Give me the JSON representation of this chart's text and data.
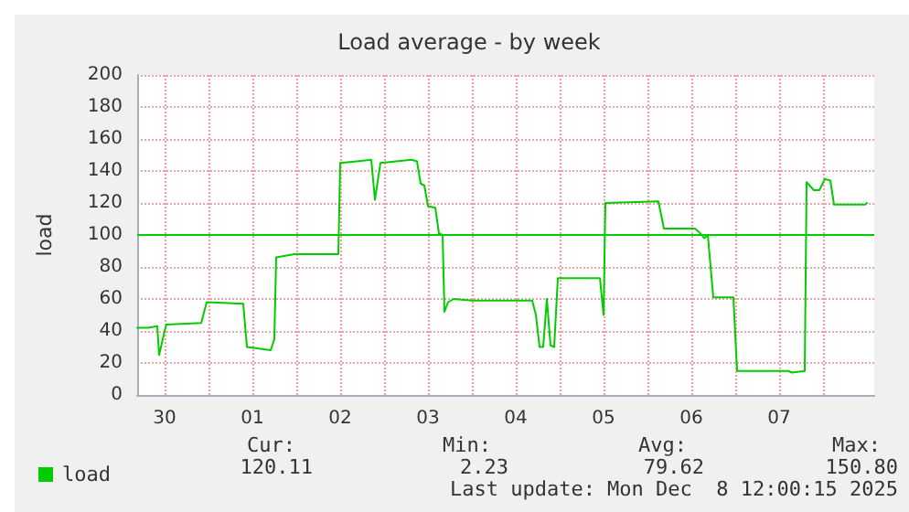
{
  "chart_data": {
    "type": "line",
    "title": "Load average - by week",
    "ylabel": "load",
    "x": [
      "2025-11-30T04:30",
      "2025-11-30T07:30",
      "2025-11-30T10:00",
      "2025-11-30T10:30",
      "2025-11-30T12:00",
      "2025-11-30T12:30",
      "2025-11-30T22:00",
      "2025-11-30T23:30",
      "2025-12-01T09:30",
      "2025-12-01T10:30",
      "2025-12-01T17:00",
      "2025-12-01T18:00",
      "2025-12-01T18:30",
      "2025-12-01T23:30",
      "2025-12-02T11:30",
      "2025-12-02T12:00",
      "2025-12-02T16:30",
      "2025-12-02T20:30",
      "2025-12-02T21:30",
      "2025-12-02T23:00",
      "2025-12-03T07:30",
      "2025-12-03T09:00",
      "2025-12-03T10:00",
      "2025-12-03T11:00",
      "2025-12-03T12:00",
      "2025-12-03T14:00",
      "2025-12-03T15:00",
      "2025-12-03T16:00",
      "2025-12-03T16:30",
      "2025-12-03T17:30",
      "2025-12-03T19:00",
      "2025-12-04T00:00",
      "2025-12-04T16:30",
      "2025-12-04T17:30",
      "2025-12-04T18:30",
      "2025-12-04T19:30",
      "2025-12-04T20:30",
      "2025-12-04T21:30",
      "2025-12-04T22:30",
      "2025-12-04T23:30",
      "2025-12-05T11:00",
      "2025-12-05T12:00",
      "2025-12-05T12:30",
      "2025-12-06T03:00",
      "2025-12-06T04:30",
      "2025-12-06T13:00",
      "2025-12-06T14:30",
      "2025-12-06T15:30",
      "2025-12-06T16:30",
      "2025-12-06T18:00",
      "2025-12-06T23:30",
      "2025-12-07T00:30",
      "2025-12-07T14:30",
      "2025-12-07T15:30",
      "2025-12-07T19:00",
      "2025-12-07T19:30",
      "2025-12-07T21:30",
      "2025-12-07T23:00",
      "2025-12-08T00:30",
      "2025-12-08T02:00",
      "2025-12-08T03:00",
      "2025-12-08T11:30",
      "2025-12-08T12:00"
    ],
    "series": [
      {
        "name": "load",
        "color": "#00cc00",
        "values": [
          42,
          42,
          43,
          25,
          40,
          44,
          45,
          58,
          57,
          30,
          28,
          35,
          86,
          88,
          88,
          145,
          146,
          147,
          122,
          145,
          147,
          146,
          132,
          131,
          118,
          117,
          101,
          100,
          52,
          58,
          60,
          59,
          59,
          50,
          30,
          30,
          60,
          31,
          30,
          73,
          73,
          50,
          120,
          121,
          104,
          104,
          101,
          98,
          100,
          61,
          61,
          15,
          15,
          14,
          15,
          133,
          128,
          128,
          135,
          134,
          119,
          119,
          120
        ]
      }
    ],
    "xlim": [
      "2025-11-30T04:30",
      "2025-12-08T14:00"
    ],
    "xticks": [
      {
        "value": "2025-11-30T12:00",
        "label": "30"
      },
      {
        "value": "2025-12-01T00:00",
        "label": null
      },
      {
        "value": "2025-12-01T12:00",
        "label": "01"
      },
      {
        "value": "2025-12-02T00:00",
        "label": null
      },
      {
        "value": "2025-12-02T12:00",
        "label": "02"
      },
      {
        "value": "2025-12-03T00:00",
        "label": null
      },
      {
        "value": "2025-12-03T12:00",
        "label": "03"
      },
      {
        "value": "2025-12-04T00:00",
        "label": null
      },
      {
        "value": "2025-12-04T12:00",
        "label": "04"
      },
      {
        "value": "2025-12-05T00:00",
        "label": null
      },
      {
        "value": "2025-12-05T12:00",
        "label": "05"
      },
      {
        "value": "2025-12-06T00:00",
        "label": null
      },
      {
        "value": "2025-12-06T12:00",
        "label": "06"
      },
      {
        "value": "2025-12-07T00:00",
        "label": null
      },
      {
        "value": "2025-12-07T12:00",
        "label": "07"
      },
      {
        "value": "2025-12-08T00:00",
        "label": null
      }
    ],
    "ylim": [
      0,
      200
    ],
    "yticks": [
      0,
      20,
      40,
      60,
      80,
      100,
      120,
      140,
      160,
      180,
      200
    ],
    "ref_lines": [
      {
        "axis": "y",
        "value": 100,
        "color": "#00cc00"
      }
    ],
    "grid": true,
    "legend": "bottom left",
    "marker": "none",
    "line_style": "solid",
    "annotations": [
      "Cur:",
      "120.11",
      "Min:",
      "2.23",
      "Avg:",
      "79.62",
      "Max:",
      "150.80",
      "Last update: Mon Dec  8 12:00:15 2025"
    ]
  }
}
